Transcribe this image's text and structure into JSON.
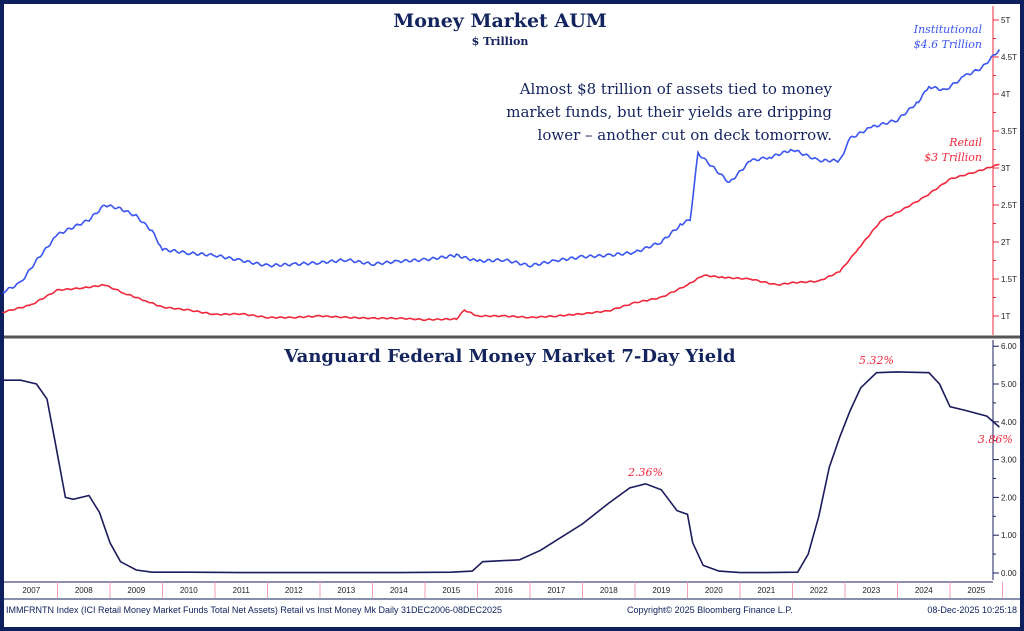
{
  "chart_data": [
    {
      "type": "line",
      "title": "Money Market AUM",
      "subtitle": "$ Trillion",
      "ylim": [
        0.8,
        5.1
      ],
      "yticks": [
        "1T",
        "1.5T",
        "2T",
        "2.5T",
        "3T",
        "3.5T",
        "4T",
        "4.5T",
        "5T"
      ],
      "ytick_values": [
        1,
        1.5,
        2,
        2.5,
        3,
        3.5,
        4,
        4.5,
        5
      ],
      "annotation": [
        "Almost $8 trillion of assets tied to money",
        "market funds, but their yields are dripping",
        "lower – another cut on deck tomorrow."
      ],
      "series": [
        {
          "name": "Institutional",
          "label": [
            "Institutional",
            "$4.6 Trillion"
          ],
          "color": "#3a55f0",
          "x": [
            2006.95,
            2007.3,
            2007.6,
            2008.0,
            2008.3,
            2008.6,
            2008.9,
            2009.2,
            2009.5,
            2009.8,
            2010.0,
            2010.5,
            2011.0,
            2011.5,
            2012.0,
            2012.5,
            2013.0,
            2013.5,
            2014.0,
            2014.5,
            2015.0,
            2015.6,
            2016.0,
            2016.5,
            2017.0,
            2017.5,
            2018.0,
            2018.5,
            2019.0,
            2019.5,
            2019.9,
            2020.05,
            2020.2,
            2020.5,
            2020.8,
            2021.2,
            2021.6,
            2022.0,
            2022.5,
            2022.9,
            2023.1,
            2023.5,
            2024.0,
            2024.4,
            2024.6,
            2024.9,
            2025.3,
            2025.6,
            2025.94
          ],
          "y": [
            1.32,
            1.45,
            1.75,
            2.1,
            2.2,
            2.3,
            2.5,
            2.45,
            2.35,
            2.15,
            1.9,
            1.85,
            1.82,
            1.75,
            1.68,
            1.7,
            1.72,
            1.76,
            1.7,
            1.74,
            1.76,
            1.82,
            1.74,
            1.76,
            1.68,
            1.75,
            1.8,
            1.82,
            1.86,
            2.0,
            2.25,
            2.3,
            3.2,
            3.0,
            2.8,
            3.1,
            3.15,
            3.25,
            3.1,
            3.1,
            3.4,
            3.55,
            3.65,
            3.9,
            4.1,
            4.05,
            4.25,
            4.35,
            4.6
          ]
        },
        {
          "name": "Retail",
          "label": [
            "Retail",
            "$3 Trillion"
          ],
          "color": "#f0283c",
          "x": [
            2006.95,
            2007.5,
            2008.0,
            2008.5,
            2008.9,
            2009.3,
            2009.7,
            2010.0,
            2010.5,
            2011.0,
            2011.5,
            2012.0,
            2012.5,
            2013.0,
            2013.5,
            2014.0,
            2014.5,
            2015.0,
            2015.6,
            2015.75,
            2016.0,
            2016.5,
            2017.0,
            2017.5,
            2018.0,
            2018.5,
            2019.0,
            2019.5,
            2020.0,
            2020.3,
            2020.7,
            2021.2,
            2021.7,
            2022.0,
            2022.5,
            2022.9,
            2023.3,
            2023.7,
            2024.0,
            2024.5,
            2025.0,
            2025.5,
            2025.94
          ],
          "y": [
            1.05,
            1.15,
            1.35,
            1.38,
            1.42,
            1.3,
            1.2,
            1.12,
            1.08,
            1.02,
            1.03,
            0.98,
            0.98,
            1.0,
            0.98,
            0.97,
            0.97,
            0.95,
            0.96,
            1.08,
            1.0,
            1.0,
            0.98,
            1.0,
            1.03,
            1.07,
            1.18,
            1.25,
            1.42,
            1.55,
            1.52,
            1.5,
            1.42,
            1.45,
            1.47,
            1.6,
            1.95,
            2.3,
            2.4,
            2.6,
            2.85,
            2.95,
            3.05
          ]
        }
      ]
    },
    {
      "type": "line",
      "title": "Vanguard Federal Money Market 7-Day Yield",
      "ylim": [
        -0.1,
        6.1
      ],
      "yticks": [
        "0.00",
        "1.00",
        "2.00",
        "3.00",
        "4.00",
        "5.00",
        "6.00"
      ],
      "ytick_values": [
        0,
        1,
        2,
        3,
        4,
        5,
        6
      ],
      "series": [
        {
          "color": "#1c1c5c",
          "x": [
            2006.95,
            2007.3,
            2007.6,
            2007.8,
            2007.95,
            2008.15,
            2008.3,
            2008.6,
            2008.8,
            2009.0,
            2009.2,
            2009.5,
            2009.8,
            2010.5,
            2011.5,
            2012.5,
            2013.5,
            2014.5,
            2015.5,
            2015.9,
            2016.1,
            2016.8,
            2017.2,
            2017.6,
            2018.0,
            2018.5,
            2018.9,
            2019.2,
            2019.5,
            2019.8,
            2020.0,
            2020.1,
            2020.3,
            2020.6,
            2021.0,
            2021.5,
            2022.1,
            2022.3,
            2022.5,
            2022.7,
            2022.9,
            2023.1,
            2023.3,
            2023.6,
            2024.0,
            2024.6,
            2024.8,
            2025.0,
            2025.3,
            2025.7,
            2025.94
          ],
          "y": [
            5.1,
            5.1,
            5.0,
            4.6,
            3.5,
            2.0,
            1.95,
            2.05,
            1.6,
            0.8,
            0.3,
            0.08,
            0.02,
            0.02,
            0.01,
            0.01,
            0.01,
            0.01,
            0.02,
            0.05,
            0.3,
            0.35,
            0.6,
            0.95,
            1.3,
            1.85,
            2.25,
            2.36,
            2.2,
            1.65,
            1.55,
            0.8,
            0.2,
            0.05,
            0.01,
            0.01,
            0.02,
            0.5,
            1.5,
            2.8,
            3.6,
            4.3,
            4.9,
            5.3,
            5.32,
            5.3,
            5.0,
            4.4,
            4.3,
            4.15,
            3.86
          ]
        }
      ],
      "annotations": [
        {
          "text": "2.36%",
          "x": 2019.2,
          "y": 2.36
        },
        {
          "text": "5.32%",
          "x": 2023.6,
          "y": 5.32
        },
        {
          "text": "3.86%",
          "x": 2025.94,
          "y": 3.86
        }
      ]
    }
  ],
  "xaxis": {
    "labels": [
      "2007",
      "2008",
      "2009",
      "2010",
      "2011",
      "2012",
      "2013",
      "2014",
      "2015",
      "2016",
      "2017",
      "2018",
      "2019",
      "2020",
      "2021",
      "2022",
      "2023",
      "2024",
      "2025"
    ]
  },
  "footer": {
    "left": "IMMFRNTN Index (ICI Retail Money Market Funds Total Net Assets) Retail vs Inst Money Mk Daily 31DEC2006-08DEC2025",
    "center": "Copyright© 2025 Bloomberg Finance L.P.",
    "right": "08-Dec-2025 10:25:18"
  }
}
